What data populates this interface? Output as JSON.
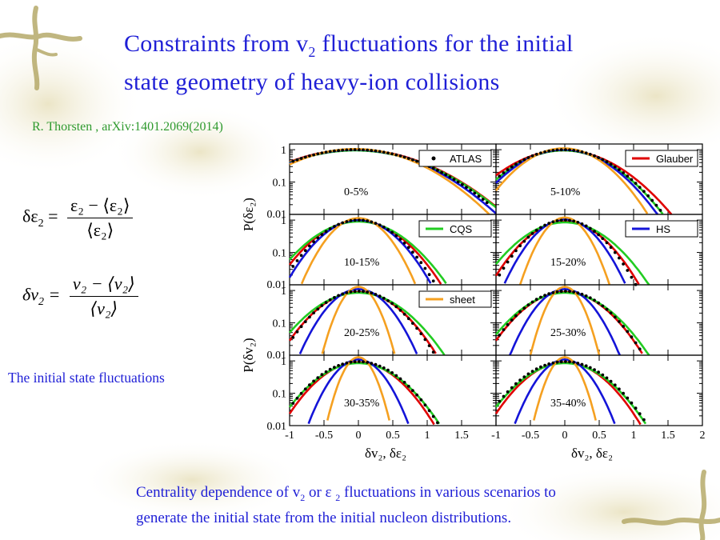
{
  "slide": {
    "title_line1": "Constraints from v",
    "title_sub": "2",
    "title_line1_end": " fluctuations for the initial",
    "title_line2": "state geometry of heavy-ion collisions",
    "reference": "R. Thorsten , arXiv:1401.2069(2014)",
    "side_note": "The initial state fluctuations",
    "caption_part1": "Centrality dependence of v",
    "caption_sub": "2",
    "caption_part2": " or  ε ",
    "caption_sub2": "2",
    "caption_part3": " fluctuations in various scenarios to",
    "caption_line2": "generate the initial state from the initial nucleon distributions."
  },
  "formulas": {
    "eps": {
      "lhs": "δε",
      "lhs_sub": "2",
      "eq": "=",
      "num": "ε₂ − ⟨ε₂⟩",
      "den": "⟨ε₂⟩"
    },
    "v": {
      "lhs": "δv",
      "lhs_sub": "2",
      "eq": "=",
      "num": "v₂ − ⟨v₂⟩",
      "den": "⟨v₂⟩"
    }
  },
  "colors": {
    "title": "#1f1fd6",
    "reference": "#2e9a2e",
    "ATLAS": "#000000",
    "Glauber": "#e00000",
    "CQS": "#22cc22",
    "HS": "#1414d8",
    "sheet": "#f5a020"
  },
  "chart_data": {
    "type": "line",
    "grid": "2x4 panels",
    "y_scale": "log",
    "ylim": [
      0.01,
      1.5
    ],
    "xlim": [
      -1,
      2
    ],
    "x_ticks": [
      "-1",
      "-0.5",
      "0",
      "0.5",
      "1",
      "1.5",
      "2"
    ],
    "y_ticks": [
      "1",
      "0.1",
      "0.01"
    ],
    "xlabel": "δv₂, δε₂",
    "ylabel_top": "P(δε₂)",
    "ylabel_bottom": "P(δv₂)",
    "legend": [
      {
        "name": "ATLAS",
        "style": "dots"
      },
      {
        "name": "Glauber",
        "style": "line"
      },
      {
        "name": "CQS",
        "style": "line"
      },
      {
        "name": "HS",
        "style": "line"
      },
      {
        "name": "sheet",
        "style": "line"
      }
    ],
    "panels": [
      {
        "label": "0-5%",
        "legend": "ATLAS"
      },
      {
        "label": "5-10%",
        "legend": "Glauber"
      },
      {
        "label": "10-15%",
        "legend": "CQS"
      },
      {
        "label": "15-20%",
        "legend": "HS"
      },
      {
        "label": "20-25%",
        "legend": "sheet"
      },
      {
        "label": "25-30%",
        "legend": ""
      },
      {
        "label": "30-35%",
        "legend": ""
      },
      {
        "label": "35-40%",
        "legend": ""
      }
    ],
    "curve_model": "P(x) = peak * exp(-(x - mu)^2 / (2 * sigma^2)), x range [-1, 2]",
    "series_by_panel": [
      {
        "ATLAS": [
          1.0,
          -0.05,
          0.7
        ],
        "Glauber": [
          1.0,
          -0.05,
          0.72
        ],
        "CQS": [
          0.95,
          -0.05,
          0.72
        ],
        "HS": [
          1.0,
          -0.05,
          0.68
        ],
        "sheet": [
          1.05,
          -0.05,
          0.64
        ]
      },
      {
        "ATLAS": [
          1.0,
          -0.02,
          0.48
        ],
        "Glauber": [
          0.95,
          -0.02,
          0.52
        ],
        "CQS": [
          0.95,
          -0.02,
          0.48
        ],
        "HS": [
          1.0,
          -0.02,
          0.45
        ],
        "sheet": [
          1.1,
          -0.02,
          0.4
        ]
      },
      {
        "ATLAS": [
          1.0,
          0.0,
          0.37
        ],
        "Glauber": [
          0.95,
          0.0,
          0.4
        ],
        "CQS": [
          0.9,
          0.0,
          0.43
        ],
        "HS": [
          1.0,
          0.0,
          0.35
        ],
        "sheet": [
          1.15,
          0.0,
          0.27
        ]
      },
      {
        "ATLAS": [
          1.0,
          0.0,
          0.34
        ],
        "Glauber": [
          0.9,
          0.0,
          0.36
        ],
        "CQS": [
          0.85,
          0.0,
          0.41
        ],
        "HS": [
          1.05,
          0.0,
          0.29
        ],
        "sheet": [
          1.2,
          0.0,
          0.21
        ]
      },
      {
        "ATLAS": [
          0.95,
          0.0,
          0.37
        ],
        "Glauber": [
          0.9,
          0.0,
          0.38
        ],
        "CQS": [
          0.85,
          0.0,
          0.42
        ],
        "HS": [
          1.1,
          0.0,
          0.28
        ],
        "sheet": [
          1.3,
          0.0,
          0.17
        ]
      },
      {
        "ATLAS": [
          0.95,
          0.0,
          0.38
        ],
        "Glauber": [
          0.9,
          0.0,
          0.38
        ],
        "CQS": [
          0.85,
          0.0,
          0.41
        ],
        "HS": [
          1.1,
          0.0,
          0.26
        ],
        "sheet": [
          1.3,
          0.0,
          0.16
        ]
      },
      {
        "ATLAS": [
          0.95,
          0.0,
          0.39
        ],
        "Glauber": [
          0.9,
          0.0,
          0.37
        ],
        "CQS": [
          0.85,
          0.0,
          0.4
        ],
        "HS": [
          1.1,
          0.0,
          0.24
        ],
        "sheet": [
          1.3,
          0.0,
          0.15
        ]
      },
      {
        "ATLAS": [
          0.95,
          0.0,
          0.4
        ],
        "Glauber": [
          0.9,
          0.0,
          0.37
        ],
        "CQS": [
          0.85,
          0.0,
          0.4
        ],
        "HS": [
          1.1,
          0.0,
          0.24
        ],
        "sheet": [
          1.3,
          0.0,
          0.15
        ]
      }
    ]
  }
}
